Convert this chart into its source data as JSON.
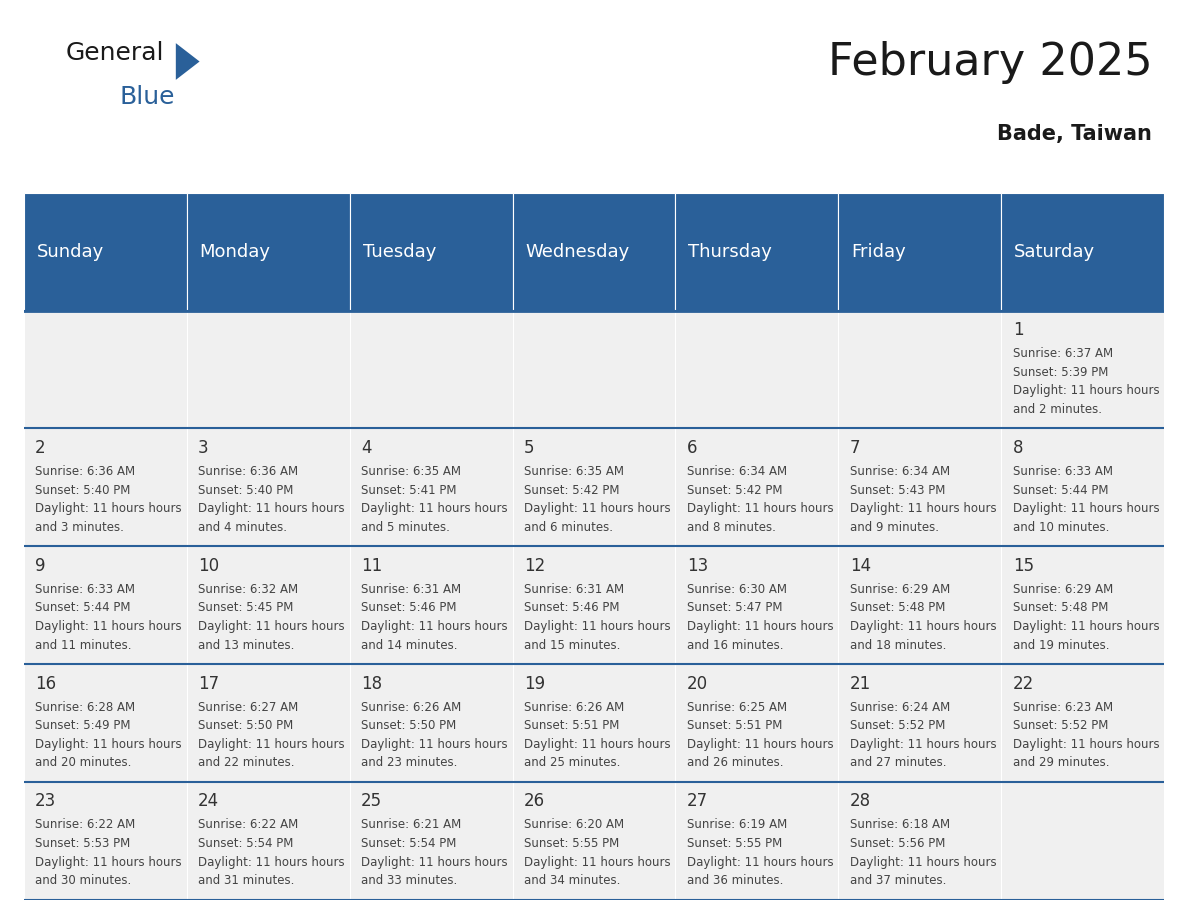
{
  "title": "February 2025",
  "subtitle": "Bade, Taiwan",
  "header_bg_color": "#2a6099",
  "header_text_color": "#ffffff",
  "cell_bg_color": "#f0f0f0",
  "day_headers": [
    "Sunday",
    "Monday",
    "Tuesday",
    "Wednesday",
    "Thursday",
    "Friday",
    "Saturday"
  ],
  "grid_line_color": "#2a6099",
  "days": [
    {
      "day": 1,
      "col": 6,
      "row": 0,
      "sunrise": "6:37 AM",
      "sunset": "5:39 PM",
      "daylight": "11 hours and 2 minutes"
    },
    {
      "day": 2,
      "col": 0,
      "row": 1,
      "sunrise": "6:36 AM",
      "sunset": "5:40 PM",
      "daylight": "11 hours and 3 minutes"
    },
    {
      "day": 3,
      "col": 1,
      "row": 1,
      "sunrise": "6:36 AM",
      "sunset": "5:40 PM",
      "daylight": "11 hours and 4 minutes"
    },
    {
      "day": 4,
      "col": 2,
      "row": 1,
      "sunrise": "6:35 AM",
      "sunset": "5:41 PM",
      "daylight": "11 hours and 5 minutes"
    },
    {
      "day": 5,
      "col": 3,
      "row": 1,
      "sunrise": "6:35 AM",
      "sunset": "5:42 PM",
      "daylight": "11 hours and 6 minutes"
    },
    {
      "day": 6,
      "col": 4,
      "row": 1,
      "sunrise": "6:34 AM",
      "sunset": "5:42 PM",
      "daylight": "11 hours and 8 minutes"
    },
    {
      "day": 7,
      "col": 5,
      "row": 1,
      "sunrise": "6:34 AM",
      "sunset": "5:43 PM",
      "daylight": "11 hours and 9 minutes"
    },
    {
      "day": 8,
      "col": 6,
      "row": 1,
      "sunrise": "6:33 AM",
      "sunset": "5:44 PM",
      "daylight": "11 hours and 10 minutes"
    },
    {
      "day": 9,
      "col": 0,
      "row": 2,
      "sunrise": "6:33 AM",
      "sunset": "5:44 PM",
      "daylight": "11 hours and 11 minutes"
    },
    {
      "day": 10,
      "col": 1,
      "row": 2,
      "sunrise": "6:32 AM",
      "sunset": "5:45 PM",
      "daylight": "11 hours and 13 minutes"
    },
    {
      "day": 11,
      "col": 2,
      "row": 2,
      "sunrise": "6:31 AM",
      "sunset": "5:46 PM",
      "daylight": "11 hours and 14 minutes"
    },
    {
      "day": 12,
      "col": 3,
      "row": 2,
      "sunrise": "6:31 AM",
      "sunset": "5:46 PM",
      "daylight": "11 hours and 15 minutes"
    },
    {
      "day": 13,
      "col": 4,
      "row": 2,
      "sunrise": "6:30 AM",
      "sunset": "5:47 PM",
      "daylight": "11 hours and 16 minutes"
    },
    {
      "day": 14,
      "col": 5,
      "row": 2,
      "sunrise": "6:29 AM",
      "sunset": "5:48 PM",
      "daylight": "11 hours and 18 minutes"
    },
    {
      "day": 15,
      "col": 6,
      "row": 2,
      "sunrise": "6:29 AM",
      "sunset": "5:48 PM",
      "daylight": "11 hours and 19 minutes"
    },
    {
      "day": 16,
      "col": 0,
      "row": 3,
      "sunrise": "6:28 AM",
      "sunset": "5:49 PM",
      "daylight": "11 hours and 20 minutes"
    },
    {
      "day": 17,
      "col": 1,
      "row": 3,
      "sunrise": "6:27 AM",
      "sunset": "5:50 PM",
      "daylight": "11 hours and 22 minutes"
    },
    {
      "day": 18,
      "col": 2,
      "row": 3,
      "sunrise": "6:26 AM",
      "sunset": "5:50 PM",
      "daylight": "11 hours and 23 minutes"
    },
    {
      "day": 19,
      "col": 3,
      "row": 3,
      "sunrise": "6:26 AM",
      "sunset": "5:51 PM",
      "daylight": "11 hours and 25 minutes"
    },
    {
      "day": 20,
      "col": 4,
      "row": 3,
      "sunrise": "6:25 AM",
      "sunset": "5:51 PM",
      "daylight": "11 hours and 26 minutes"
    },
    {
      "day": 21,
      "col": 5,
      "row": 3,
      "sunrise": "6:24 AM",
      "sunset": "5:52 PM",
      "daylight": "11 hours and 27 minutes"
    },
    {
      "day": 22,
      "col": 6,
      "row": 3,
      "sunrise": "6:23 AM",
      "sunset": "5:52 PM",
      "daylight": "11 hours and 29 minutes"
    },
    {
      "day": 23,
      "col": 0,
      "row": 4,
      "sunrise": "6:22 AM",
      "sunset": "5:53 PM",
      "daylight": "11 hours and 30 minutes"
    },
    {
      "day": 24,
      "col": 1,
      "row": 4,
      "sunrise": "6:22 AM",
      "sunset": "5:54 PM",
      "daylight": "11 hours and 31 minutes"
    },
    {
      "day": 25,
      "col": 2,
      "row": 4,
      "sunrise": "6:21 AM",
      "sunset": "5:54 PM",
      "daylight": "11 hours and 33 minutes"
    },
    {
      "day": 26,
      "col": 3,
      "row": 4,
      "sunrise": "6:20 AM",
      "sunset": "5:55 PM",
      "daylight": "11 hours and 34 minutes"
    },
    {
      "day": 27,
      "col": 4,
      "row": 4,
      "sunrise": "6:19 AM",
      "sunset": "5:55 PM",
      "daylight": "11 hours and 36 minutes"
    },
    {
      "day": 28,
      "col": 5,
      "row": 4,
      "sunrise": "6:18 AM",
      "sunset": "5:56 PM",
      "daylight": "11 hours and 37 minutes"
    }
  ],
  "num_rows": 5,
  "logo_text_general": "General",
  "logo_text_blue": "Blue",
  "logo_triangle_color": "#2a6099",
  "title_fontsize": 32,
  "subtitle_fontsize": 15,
  "header_fontsize": 13,
  "day_num_fontsize": 12,
  "cell_text_fontsize": 8.5
}
